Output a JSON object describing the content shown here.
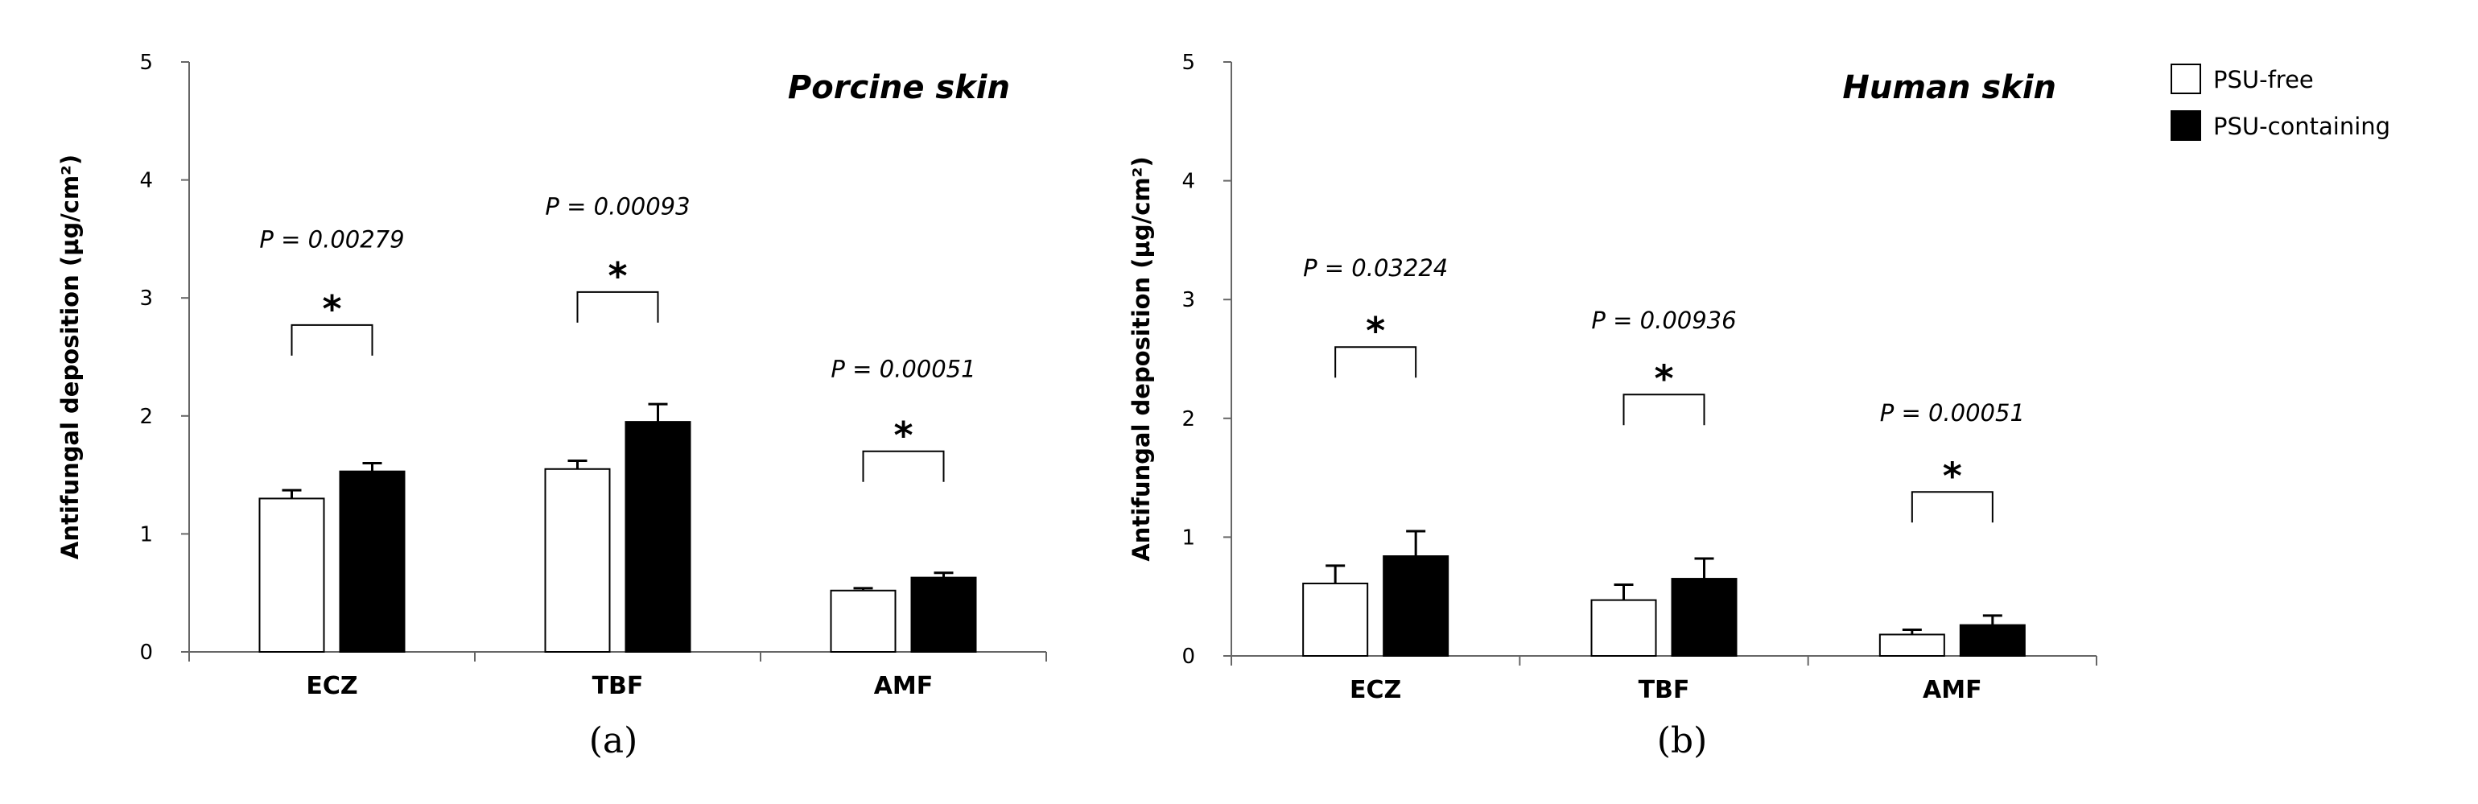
{
  "legend": {
    "position": "top-right",
    "items": [
      {
        "label": "PSU-free",
        "fill": "#ffffff"
      },
      {
        "label": "PSU-containing",
        "fill": "#000000"
      }
    ]
  },
  "colors": {
    "free": "#ffffff",
    "containing": "#000000",
    "stroke": "#000000",
    "axis": "#666666"
  },
  "chart_data": [
    {
      "type": "bar",
      "panel_label": "(a)",
      "title": "Porcine skin",
      "ylabel": "Antifungal deposition (µg/cm²)",
      "xlabel": "",
      "ylim": [
        0,
        5
      ],
      "yticks": [
        "0",
        "1",
        "2",
        "3",
        "4",
        "5"
      ],
      "grid": false,
      "categories": [
        "ECZ",
        "TBF",
        "AMF"
      ],
      "series": [
        {
          "name": "PSU-free",
          "values": [
            1.3,
            1.55,
            0.52
          ],
          "errors": [
            0.07,
            0.07,
            0.02
          ]
        },
        {
          "name": "PSU-containing",
          "values": [
            1.53,
            1.95,
            0.63
          ],
          "errors": [
            0.07,
            0.15,
            0.04
          ]
        }
      ],
      "annotations": [
        {
          "category": "ECZ",
          "p": "P = 0.00279",
          "star": "*",
          "p_y": 3.49,
          "bracket_y": 2.77
        },
        {
          "category": "TBF",
          "p": "P = 0.00093",
          "star": "*",
          "p_y": 3.77,
          "bracket_y": 3.05
        },
        {
          "category": "AMF",
          "p": "P = 0.00051",
          "star": "*",
          "p_y": 2.39,
          "bracket_y": 1.7
        }
      ]
    },
    {
      "type": "bar",
      "panel_label": "(b)",
      "title": "Human skin",
      "ylabel": "Antifungal deposition (µg/cm²)",
      "xlabel": "",
      "ylim": [
        0,
        5
      ],
      "yticks": [
        "0",
        "1",
        "2",
        "3",
        "4",
        "5"
      ],
      "grid": false,
      "categories": [
        "ECZ",
        "TBF",
        "AMF"
      ],
      "series": [
        {
          "name": "PSU-free",
          "values": [
            0.61,
            0.47,
            0.18
          ],
          "errors": [
            0.15,
            0.13,
            0.04
          ]
        },
        {
          "name": "PSU-containing",
          "values": [
            0.84,
            0.65,
            0.26
          ],
          "errors": [
            0.21,
            0.17,
            0.08
          ]
        }
      ],
      "annotations": [
        {
          "category": "ECZ",
          "p": "P = 0.03224",
          "star": "*",
          "p_y": 3.26,
          "bracket_y": 2.6
        },
        {
          "category": "TBF",
          "p": "P = 0.00936",
          "star": "*",
          "p_y": 2.82,
          "bracket_y": 2.2
        },
        {
          "category": "AMF",
          "p": "P = 0.00051",
          "star": "*",
          "p_y": 2.04,
          "bracket_y": 1.38
        }
      ]
    }
  ]
}
